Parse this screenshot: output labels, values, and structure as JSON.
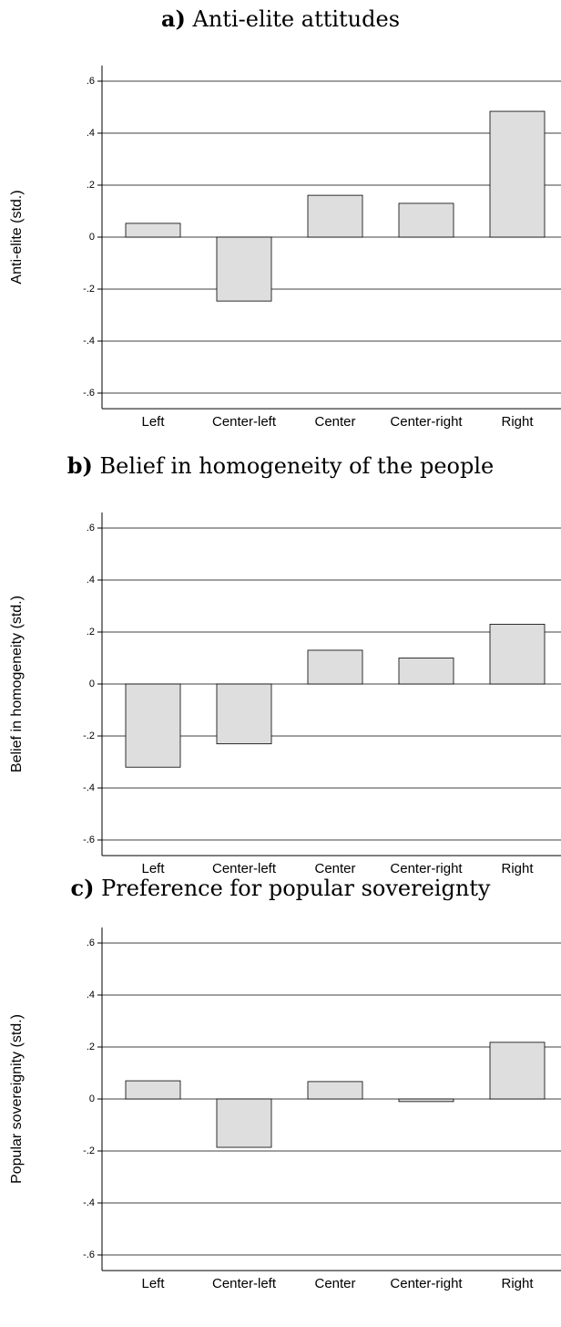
{
  "chart_data": [
    {
      "type": "bar",
      "panel": "a)",
      "title": "Anti-elite attitudes",
      "ylabel": "Anti-elite (std.)",
      "categories": [
        "Left",
        "Center-left",
        "Center",
        "Center-right",
        "Right"
      ],
      "values": [
        0.053,
        -0.246,
        0.161,
        0.13,
        0.484
      ],
      "color": "#dedede",
      "ylim": [
        -0.66,
        0.66
      ],
      "yticks": [
        {
          "value": -0.6,
          "label": "-.6"
        },
        {
          "value": -0.4,
          "label": "-.4"
        },
        {
          "value": -0.2,
          "label": "-.2"
        },
        0,
        {
          "value": 0.2,
          "label": ".2"
        },
        {
          "value": 0.4,
          "label": ".4"
        },
        {
          "value": 0.6,
          "label": ".6"
        }
      ],
      "grid": true
    },
    {
      "type": "bar",
      "panel": "b)",
      "title": "Belief in homogeneity of the people",
      "ylabel": "Belief in homogeneity (std.)",
      "categories": [
        "Left",
        "Center-left",
        "Center",
        "Center-right",
        "Right"
      ],
      "values": [
        -0.32,
        -0.23,
        0.13,
        0.1,
        0.23
      ],
      "color": "#dedede",
      "ylim": [
        -0.66,
        0.66
      ],
      "yticks": [
        {
          "value": -0.6,
          "label": "-.6"
        },
        {
          "value": -0.4,
          "label": "-.4"
        },
        {
          "value": -0.2,
          "label": "-.2"
        },
        0,
        {
          "value": 0.2,
          "label": ".2"
        },
        {
          "value": 0.4,
          "label": ".4"
        },
        {
          "value": 0.6,
          "label": ".6"
        }
      ],
      "grid": true
    },
    {
      "type": "bar",
      "panel": "c)",
      "title": "Preference for popular sovereignty",
      "ylabel": "Popular sovereignity (std.)",
      "categories": [
        "Left",
        "Center-left",
        "Center",
        "Center-right",
        "Right"
      ],
      "values": [
        0.07,
        -0.186,
        0.067,
        -0.01,
        0.218
      ],
      "color": "#dedede",
      "ylim": [
        -0.66,
        0.66
      ],
      "yticks": [
        {
          "value": -0.6,
          "label": "-.6"
        },
        {
          "value": -0.4,
          "label": "-.4"
        },
        {
          "value": -0.2,
          "label": "-.2"
        },
        0,
        {
          "value": 0.2,
          "label": ".2"
        },
        {
          "value": 0.4,
          "label": ".4"
        },
        {
          "value": 0.6,
          "label": ".6"
        }
      ],
      "grid": true
    }
  ]
}
